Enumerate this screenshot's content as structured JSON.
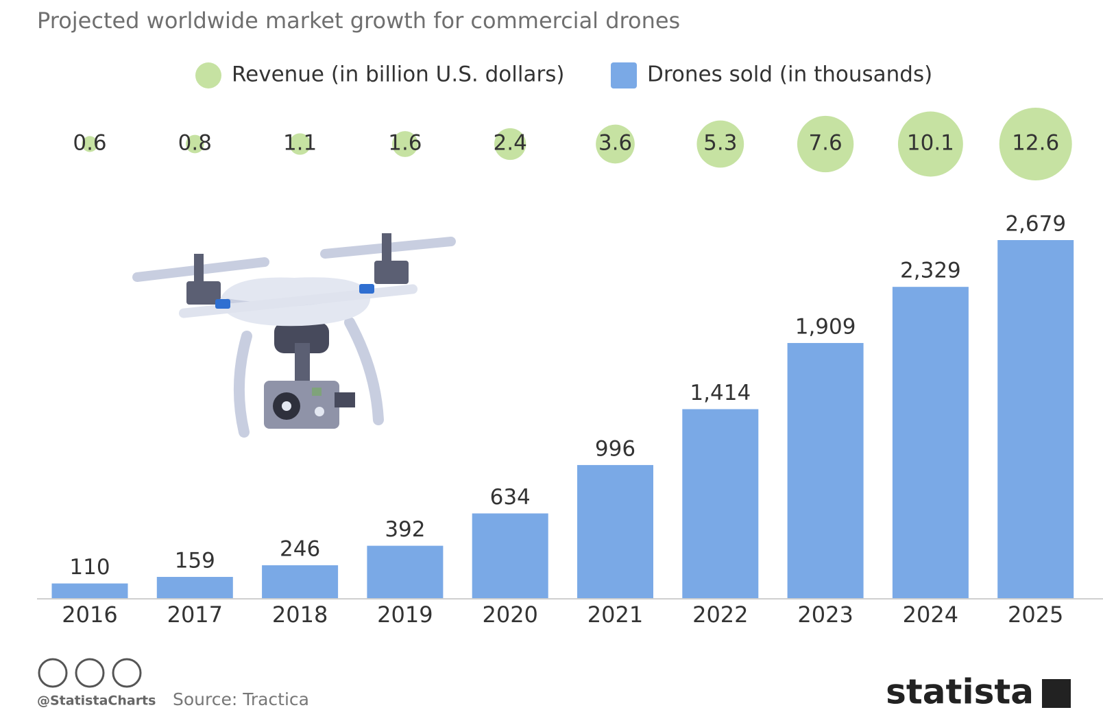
{
  "chart_data": {
    "type": "bar",
    "title": "Projected worldwide market growth for commercial drones",
    "categories": [
      "2016",
      "2017",
      "2018",
      "2019",
      "2020",
      "2021",
      "2022",
      "2023",
      "2024",
      "2025"
    ],
    "series": [
      {
        "name": "Revenue (in billion U.S. dollars)",
        "type": "bubble",
        "color": "#c6e2a2",
        "values": [
          0.6,
          0.8,
          1.1,
          1.6,
          2.4,
          3.6,
          5.3,
          7.6,
          10.1,
          12.6
        ]
      },
      {
        "name": "Drones sold (in thousands)",
        "type": "bar",
        "color": "#7aa9e6",
        "values": [
          110,
          159,
          246,
          392,
          634,
          996,
          1414,
          1909,
          2329,
          2679
        ],
        "value_labels": [
          "110",
          "159",
          "246",
          "392",
          "634",
          "996",
          "1,414",
          "1,909",
          "2,329",
          "2,679"
        ]
      }
    ],
    "credit": "@StatistaCharts",
    "source": "Source: Tractica",
    "brand": "statista"
  }
}
